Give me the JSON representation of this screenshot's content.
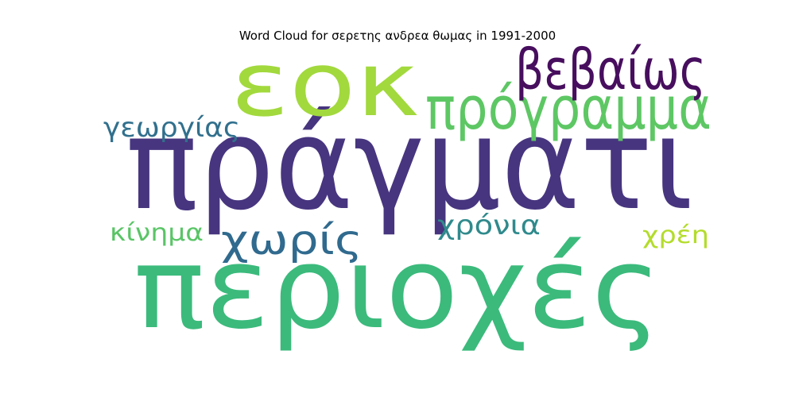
{
  "chart_data": {
    "type": "wordcloud",
    "title": "Word Cloud for σερετης ανδρεα θωμας in 1991-2000",
    "colormap": "viridis",
    "background": "#ffffff",
    "words": [
      {
        "text": "πράγματι",
        "weight": 1.0,
        "color": "#47357f"
      },
      {
        "text": "περιοχές",
        "weight": 0.82,
        "color": "#3bba7c"
      },
      {
        "text": "εοκ",
        "weight": 0.64,
        "color": "#a2d93d"
      },
      {
        "text": "πρόγραμμα",
        "weight": 0.42,
        "color": "#5dc764"
      },
      {
        "text": "βεβαίως",
        "weight": 0.4,
        "color": "#470e5e"
      },
      {
        "text": "χωρίς",
        "weight": 0.3,
        "color": "#306a8e"
      },
      {
        "text": "γεωργίας",
        "weight": 0.2,
        "color": "#31708d"
      },
      {
        "text": "χρόνια",
        "weight": 0.2,
        "color": "#2f8a8c"
      },
      {
        "text": "κίνημα",
        "weight": 0.17,
        "color": "#59c566"
      },
      {
        "text": "χρέη",
        "weight": 0.17,
        "color": "#b3dc2b"
      }
    ]
  }
}
